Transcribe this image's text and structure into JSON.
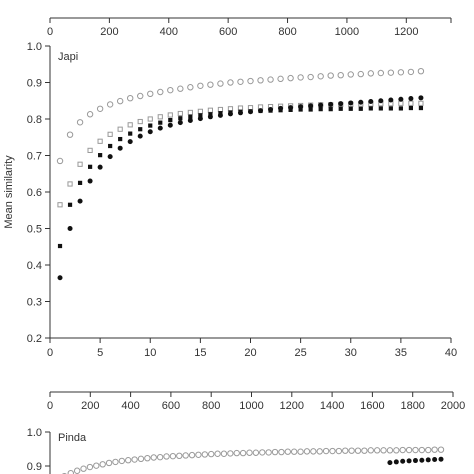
{
  "chart_data": [
    {
      "type": "scatter",
      "panel_label": "Japi",
      "ylabel": "Mean similarity",
      "xlim": [
        0,
        40
      ],
      "ylim": [
        0.2,
        1.0
      ],
      "x_ticks": [
        0,
        5,
        10,
        15,
        20,
        25,
        30,
        35,
        40
      ],
      "y_ticks": [
        "0.2",
        "0.3",
        "0.4",
        "0.5",
        "0.6",
        "0.7",
        "0.8",
        "0.9",
        "1.0"
      ],
      "top_axis": {
        "ticks": [
          0,
          200,
          400,
          600,
          800,
          1000,
          1200
        ],
        "range": [
          0,
          1300
        ]
      },
      "colors": {
        "axis": "#333333",
        "filled": "#111111",
        "open": "#999999"
      },
      "series": [
        {
          "marker": "open-circle",
          "x": [
            1,
            2,
            3,
            4,
            5,
            6,
            7,
            8,
            9,
            10,
            11,
            12,
            13,
            14,
            15,
            16,
            17,
            18,
            19,
            20,
            21,
            22,
            23,
            24,
            25,
            26,
            27,
            28,
            29,
            30,
            31,
            32,
            33,
            34,
            35,
            36,
            37
          ],
          "values": [
            0.685,
            0.757,
            0.791,
            0.813,
            0.828,
            0.84,
            0.849,
            0.857,
            0.863,
            0.869,
            0.874,
            0.879,
            0.883,
            0.887,
            0.891,
            0.894,
            0.897,
            0.9,
            0.902,
            0.904,
            0.906,
            0.908,
            0.91,
            0.912,
            0.914,
            0.915,
            0.917,
            0.919,
            0.92,
            0.922,
            0.923,
            0.925,
            0.926,
            0.927,
            0.928,
            0.929,
            0.931
          ]
        },
        {
          "marker": "open-square",
          "x": [
            1,
            2,
            3,
            4,
            5,
            6,
            7,
            8,
            9,
            10,
            11,
            12,
            13,
            14,
            15,
            16,
            17,
            18,
            19,
            20,
            21,
            22,
            23,
            24,
            25,
            26,
            27,
            28,
            29,
            30,
            31,
            32,
            33,
            34,
            35,
            36,
            37
          ],
          "values": [
            0.565,
            0.622,
            0.676,
            0.714,
            0.739,
            0.758,
            0.772,
            0.784,
            0.793,
            0.8,
            0.806,
            0.811,
            0.815,
            0.818,
            0.821,
            0.824,
            0.826,
            0.828,
            0.83,
            0.831,
            0.833,
            0.834,
            0.835,
            0.836,
            0.837,
            0.838,
            0.839,
            0.839,
            0.84,
            0.84,
            0.841,
            0.841,
            0.842,
            0.842,
            0.843,
            0.843,
            0.843
          ]
        },
        {
          "marker": "filled-square",
          "x": [
            1,
            2,
            3,
            4,
            5,
            6,
            7,
            8,
            9,
            10,
            11,
            12,
            13,
            14,
            15,
            16,
            17,
            18,
            19,
            20,
            21,
            22,
            23,
            24,
            25,
            26,
            27,
            28,
            29,
            30,
            31,
            32,
            33,
            34,
            35,
            36,
            37
          ],
          "values": [
            0.452,
            0.565,
            0.625,
            0.669,
            0.701,
            0.726,
            0.745,
            0.76,
            0.772,
            0.782,
            0.79,
            0.797,
            0.802,
            0.806,
            0.81,
            0.813,
            0.816,
            0.818,
            0.82,
            0.821,
            0.822,
            0.823,
            0.824,
            0.825,
            0.826,
            0.826,
            0.827,
            0.827,
            0.828,
            0.828,
            0.828,
            0.829,
            0.829,
            0.829,
            0.829,
            0.83,
            0.83
          ]
        },
        {
          "marker": "filled-circle",
          "x": [
            1,
            2,
            3,
            4,
            5,
            6,
            7,
            8,
            9,
            10,
            11,
            12,
            13,
            14,
            15,
            16,
            17,
            18,
            19,
            20,
            21,
            22,
            23,
            24,
            25,
            26,
            27,
            28,
            29,
            30,
            31,
            32,
            33,
            34,
            35,
            36,
            37
          ],
          "values": [
            0.365,
            0.5,
            0.575,
            0.63,
            0.668,
            0.697,
            0.72,
            0.738,
            0.753,
            0.765,
            0.775,
            0.783,
            0.79,
            0.796,
            0.801,
            0.806,
            0.81,
            0.814,
            0.817,
            0.82,
            0.823,
            0.826,
            0.829,
            0.831,
            0.834,
            0.836,
            0.838,
            0.84,
            0.842,
            0.844,
            0.846,
            0.848,
            0.85,
            0.852,
            0.854,
            0.856,
            0.858
          ]
        }
      ]
    },
    {
      "type": "scatter",
      "panel_label": "Pinda",
      "ylim": [
        0.8,
        1.0
      ],
      "y_ticks": [
        "1.0",
        "0.9"
      ],
      "top_axis": {
        "ticks": [
          0,
          200,
          400,
          600,
          800,
          1000,
          1200,
          1400,
          1600,
          1800,
          2000
        ],
        "range": [
          0,
          2000
        ]
      },
      "xlim": [
        0,
        60
      ],
      "series": [
        {
          "marker": "open-circle",
          "x": [
            1,
            2,
            3,
            4,
            5,
            6,
            7,
            8,
            9,
            10,
            11,
            12,
            13,
            14,
            15,
            16,
            17,
            18,
            19,
            20,
            21,
            22,
            23,
            24,
            25,
            26,
            27,
            28,
            29,
            30,
            31,
            32,
            33,
            34,
            35,
            36,
            37,
            38,
            39,
            40,
            41,
            42,
            43,
            44,
            45,
            46,
            47,
            48,
            49,
            50,
            51,
            52,
            53,
            54,
            55,
            56,
            57,
            58,
            59,
            60
          ],
          "values": [
            0.87,
            0.879,
            0.886,
            0.892,
            0.897,
            0.901,
            0.905,
            0.909,
            0.912,
            0.915,
            0.917,
            0.919,
            0.921,
            0.923,
            0.925,
            0.926,
            0.928,
            0.929,
            0.93,
            0.931,
            0.932,
            0.933,
            0.934,
            0.935,
            0.936,
            0.936,
            0.937,
            0.938,
            0.938,
            0.939,
            0.939,
            0.94,
            0.94,
            0.941,
            0.941,
            0.942,
            0.942,
            0.942,
            0.943,
            0.943,
            0.943,
            0.944,
            0.944,
            0.944,
            0.945,
            0.945,
            0.945,
            0.945,
            0.946,
            0.946,
            0.946,
            0.946,
            0.946,
            0.947,
            0.947,
            0.947,
            0.947,
            0.947,
            0.948,
            0.948
          ]
        },
        {
          "marker": "filled-circle",
          "x": [
            52,
            53,
            54,
            55,
            56,
            57,
            58,
            59,
            60
          ],
          "values": [
            0.91,
            0.912,
            0.914,
            0.915,
            0.916,
            0.917,
            0.918,
            0.919,
            0.92
          ]
        }
      ]
    }
  ]
}
